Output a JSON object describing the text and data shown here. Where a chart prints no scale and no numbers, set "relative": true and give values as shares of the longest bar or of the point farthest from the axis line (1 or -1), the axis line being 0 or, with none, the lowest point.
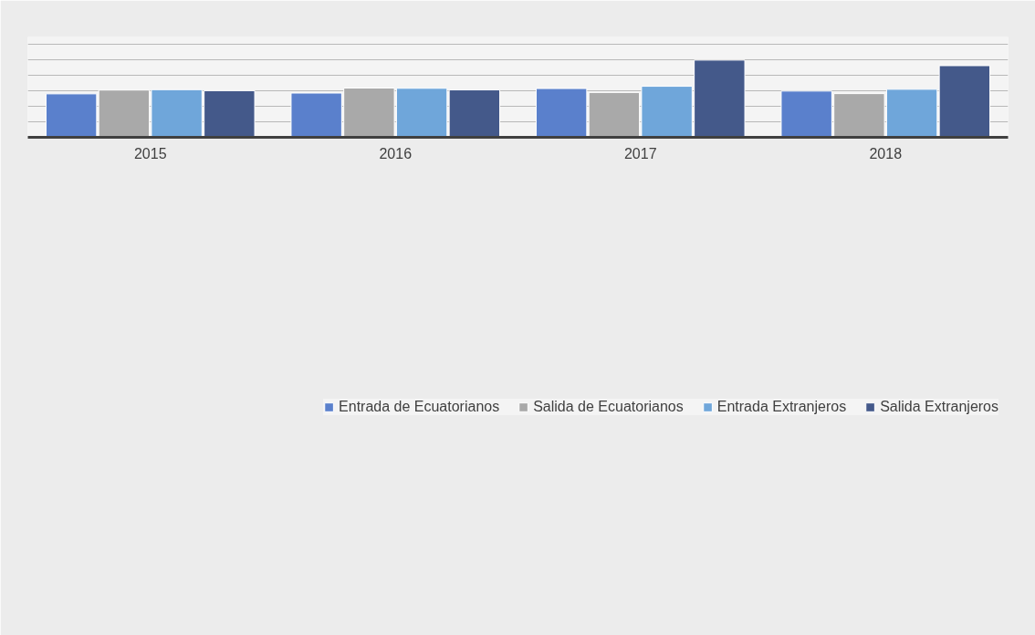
{
  "chart_data": {
    "type": "bar",
    "relative": true,
    "categories": [
      "2015",
      "2016",
      "2017",
      "2018"
    ],
    "series": [
      {
        "name": "Entrada de Ecuatorianos",
        "color": "#5a80cc",
        "values": [
          0.563,
          0.573,
          0.632,
          0.599
        ]
      },
      {
        "name": "Salida de Ecuatorianos",
        "color": "#a9a9a9",
        "values": [
          0.612,
          0.638,
          0.581,
          0.566
        ]
      },
      {
        "name": "Entrada Extranjeros",
        "color": "#6fa6da",
        "values": [
          0.617,
          0.635,
          0.661,
          0.622
        ]
      },
      {
        "name": "Salida Extranjeros",
        "color": "#44598a",
        "values": [
          0.604,
          0.614,
          1,
          0.928
        ]
      }
    ],
    "grid": "y",
    "legend": "bottom"
  }
}
